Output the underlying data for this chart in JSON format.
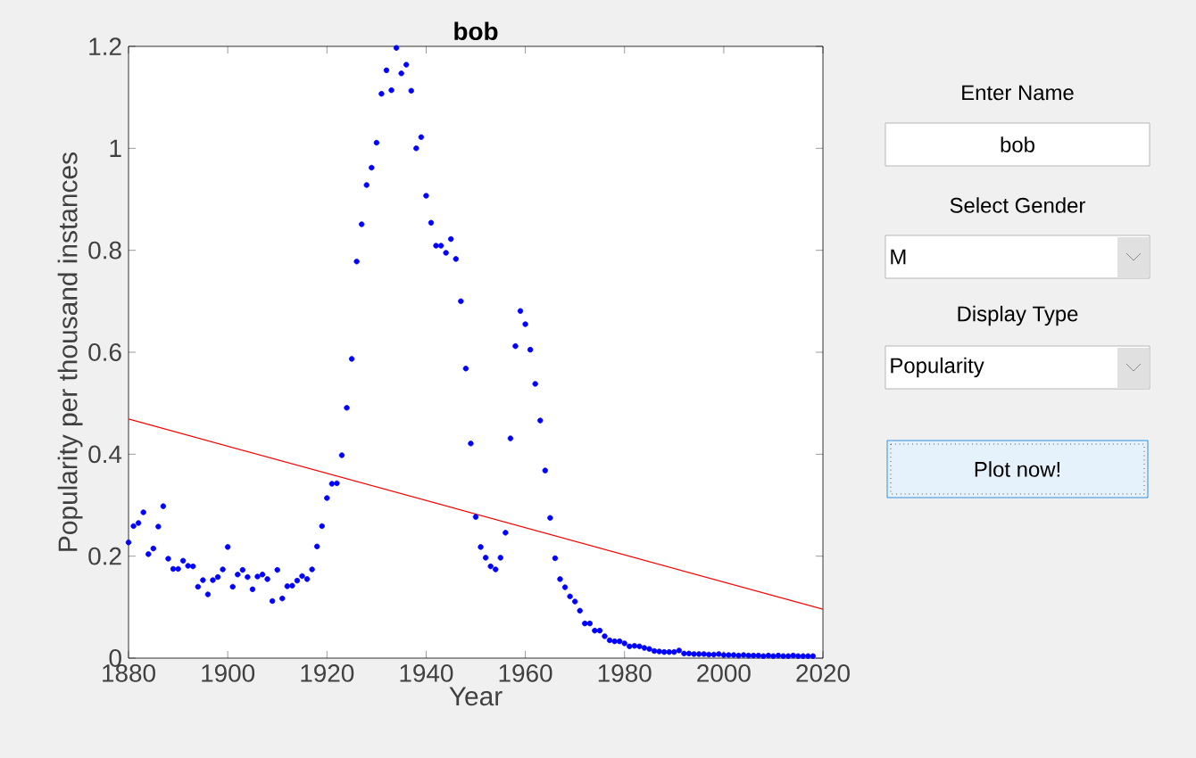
{
  "chart_data": {
    "type": "scatter",
    "title": "bob",
    "xlabel": "Year",
    "ylabel": "Popularity per thousand instances",
    "xlim": [
      1880,
      2020
    ],
    "ylim": [
      0,
      1.2
    ],
    "xticks": [
      1880,
      1900,
      1920,
      1940,
      1960,
      1980,
      2000,
      2020
    ],
    "yticks": [
      0,
      0.2,
      0.4,
      0.6,
      0.8,
      1,
      1.2
    ],
    "grid": false,
    "series": [
      {
        "marker": "circle",
        "color": "#0000ff",
        "x": [
          1880,
          1881,
          1882,
          1883,
          1884,
          1885,
          1886,
          1887,
          1888,
          1889,
          1890,
          1891,
          1892,
          1893,
          1894,
          1895,
          1896,
          1897,
          1898,
          1899,
          1900,
          1901,
          1902,
          1903,
          1904,
          1905,
          1906,
          1907,
          1908,
          1909,
          1910,
          1911,
          1912,
          1913,
          1914,
          1915,
          1916,
          1917,
          1918,
          1919,
          1920,
          1921,
          1922,
          1923,
          1924,
          1925,
          1926,
          1927,
          1928,
          1929,
          1930,
          1931,
          1932,
          1933,
          1934,
          1935,
          1936,
          1937,
          1938,
          1939,
          1940,
          1941,
          1942,
          1943,
          1944,
          1945,
          1946,
          1947,
          1948,
          1949,
          1950,
          1951,
          1952,
          1953,
          1954,
          1955,
          1956,
          1957,
          1958,
          1959,
          1960,
          1961,
          1962,
          1963,
          1964,
          1965,
          1966,
          1967,
          1968,
          1969,
          1970,
          1971,
          1972,
          1973,
          1974,
          1975,
          1976,
          1977,
          1978,
          1979,
          1980,
          1981,
          1982,
          1983,
          1984,
          1985,
          1986,
          1987,
          1988,
          1989,
          1990,
          1991,
          1992,
          1993,
          1994,
          1995,
          1996,
          1997,
          1998,
          1999,
          2000,
          2001,
          2002,
          2003,
          2004,
          2005,
          2006,
          2007,
          2008,
          2009,
          2010,
          2011,
          2012,
          2013,
          2014,
          2015,
          2016,
          2017,
          2018
        ],
        "values": [
          0.227,
          0.259,
          0.265,
          0.286,
          0.204,
          0.215,
          0.258,
          0.298,
          0.195,
          0.175,
          0.175,
          0.191,
          0.181,
          0.18,
          0.14,
          0.153,
          0.125,
          0.153,
          0.159,
          0.174,
          0.218,
          0.14,
          0.164,
          0.173,
          0.159,
          0.135,
          0.16,
          0.164,
          0.155,
          0.112,
          0.173,
          0.117,
          0.141,
          0.142,
          0.152,
          0.161,
          0.155,
          0.174,
          0.219,
          0.259,
          0.314,
          0.342,
          0.343,
          0.398,
          0.491,
          0.587,
          0.778,
          0.851,
          0.928,
          0.962,
          1.011,
          1.107,
          1.153,
          1.114,
          1.197,
          1.147,
          1.164,
          1.113,
          1.0,
          1.022,
          0.907,
          0.854,
          0.809,
          0.809,
          0.795,
          0.822,
          0.783,
          0.7,
          0.568,
          0.421,
          0.277,
          0.218,
          0.197,
          0.18,
          0.174,
          0.197,
          0.246,
          0.431,
          0.612,
          0.681,
          0.655,
          0.605,
          0.538,
          0.466,
          0.368,
          0.275,
          0.196,
          0.155,
          0.139,
          0.121,
          0.111,
          0.093,
          0.068,
          0.068,
          0.054,
          0.054,
          0.043,
          0.035,
          0.033,
          0.033,
          0.029,
          0.023,
          0.024,
          0.023,
          0.02,
          0.018,
          0.014,
          0.013,
          0.012,
          0.012,
          0.012,
          0.015,
          0.009,
          0.009,
          0.008,
          0.008,
          0.008,
          0.007,
          0.007,
          0.008,
          0.006,
          0.006,
          0.006,
          0.005,
          0.006,
          0.005,
          0.005,
          0.005,
          0.004,
          0.005,
          0.004,
          0.005,
          0.004,
          0.004,
          0.005,
          0.004,
          0.004,
          0.004,
          0.004
        ]
      },
      {
        "type": "line",
        "marker": "none",
        "color": "#ff0000",
        "x": [
          1880,
          2020
        ],
        "values": [
          0.469,
          0.096
        ]
      }
    ],
    "annotations": [
      "Enter Name",
      "bob",
      "Select Gender",
      "M",
      "Display  Type",
      "Popularity",
      "Plot now!"
    ]
  }
}
